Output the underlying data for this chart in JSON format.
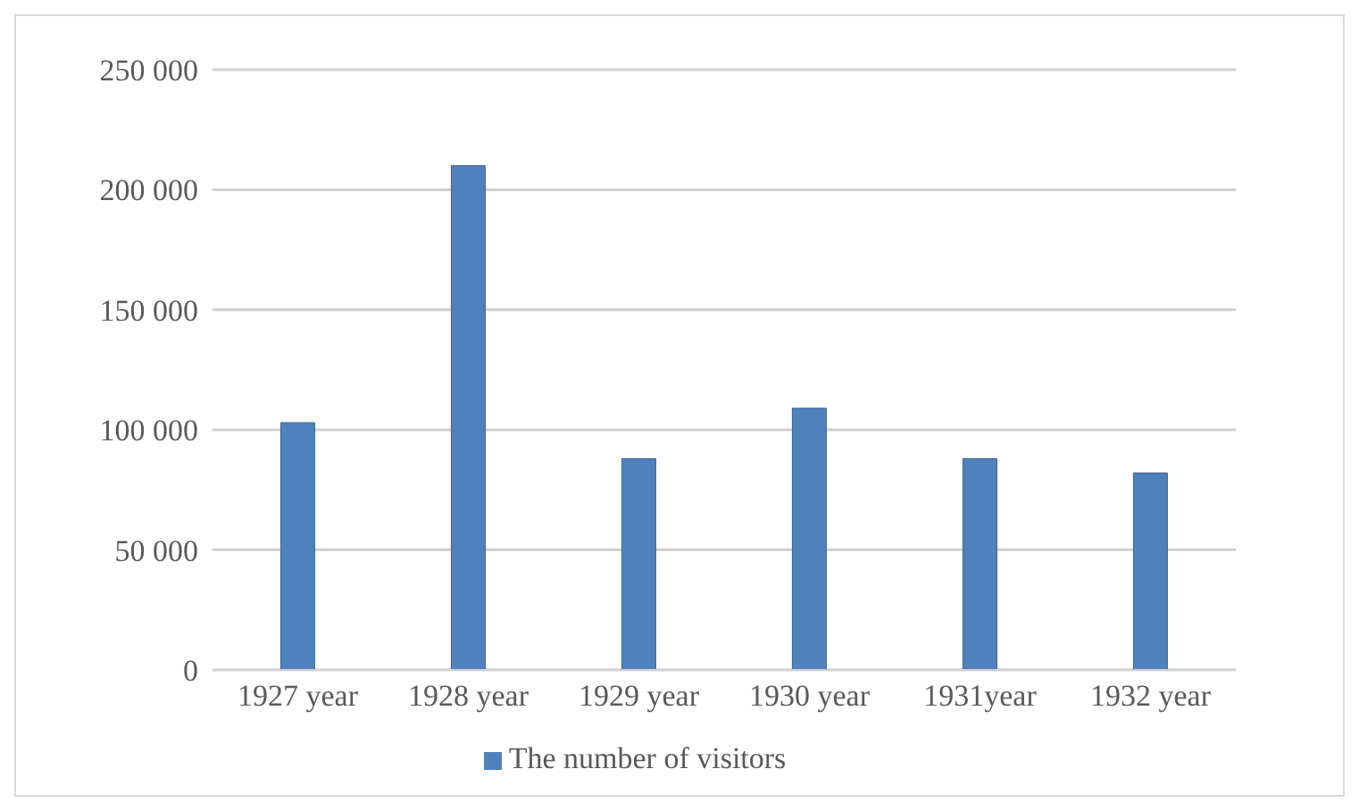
{
  "chart_data": {
    "type": "bar",
    "categories": [
      "1927 year",
      "1928 year",
      "1929 year",
      "1930 year",
      "1931year",
      "1932 year"
    ],
    "series": [
      {
        "name": "The number of visitors",
        "color": "#4f81bd",
        "values": [
          103000,
          210000,
          88000,
          109000,
          88000,
          82000
        ]
      }
    ],
    "ylim": [
      0,
      250000
    ],
    "yticks": [
      {
        "value": 0,
        "label": "0"
      },
      {
        "value": 50000,
        "label": "50 000"
      },
      {
        "value": 100000,
        "label": "100 000"
      },
      {
        "value": 150000,
        "label": "150 000"
      },
      {
        "value": 200000,
        "label": "200 000"
      },
      {
        "value": 250000,
        "label": "250 000"
      }
    ],
    "grid": "y",
    "legend": "bottom"
  }
}
